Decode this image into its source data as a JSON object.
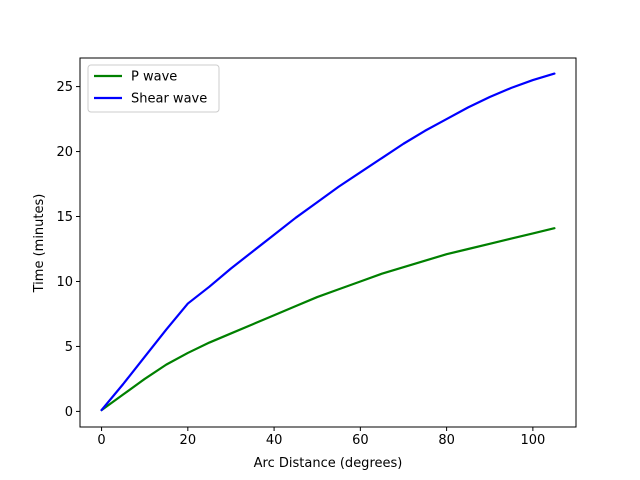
{
  "chart_data": {
    "type": "line",
    "xlabel": "Arc Distance (degrees)",
    "ylabel": "Time (minutes)",
    "xlim": [
      -5,
      110
    ],
    "ylim": [
      -1.2,
      27.2
    ],
    "xticks": [
      0,
      20,
      40,
      60,
      80,
      100
    ],
    "yticks": [
      0,
      5,
      10,
      15,
      20,
      25
    ],
    "grid": false,
    "legend_position": "top-left",
    "series": [
      {
        "name": "P wave",
        "color": "#008000",
        "x": [
          0,
          5,
          10,
          15,
          20,
          25,
          30,
          35,
          40,
          45,
          50,
          55,
          60,
          65,
          70,
          75,
          80,
          85,
          90,
          95,
          100,
          105
        ],
        "y": [
          0.1,
          1.3,
          2.5,
          3.6,
          4.5,
          5.3,
          6.0,
          6.7,
          7.4,
          8.1,
          8.8,
          9.4,
          10.0,
          10.6,
          11.1,
          11.6,
          12.1,
          12.5,
          12.9,
          13.3,
          13.7,
          14.1
        ]
      },
      {
        "name": "Shear wave",
        "color": "#0000ff",
        "x": [
          0,
          5,
          10,
          15,
          20,
          25,
          30,
          35,
          40,
          45,
          50,
          55,
          60,
          65,
          70,
          75,
          80,
          85,
          90,
          95,
          100,
          105
        ],
        "y": [
          0.1,
          2.1,
          4.2,
          6.3,
          8.3,
          9.6,
          11.0,
          12.3,
          13.6,
          14.9,
          16.1,
          17.3,
          18.4,
          19.5,
          20.6,
          21.6,
          22.5,
          23.4,
          24.2,
          24.9,
          25.5,
          26.0
        ]
      }
    ]
  }
}
